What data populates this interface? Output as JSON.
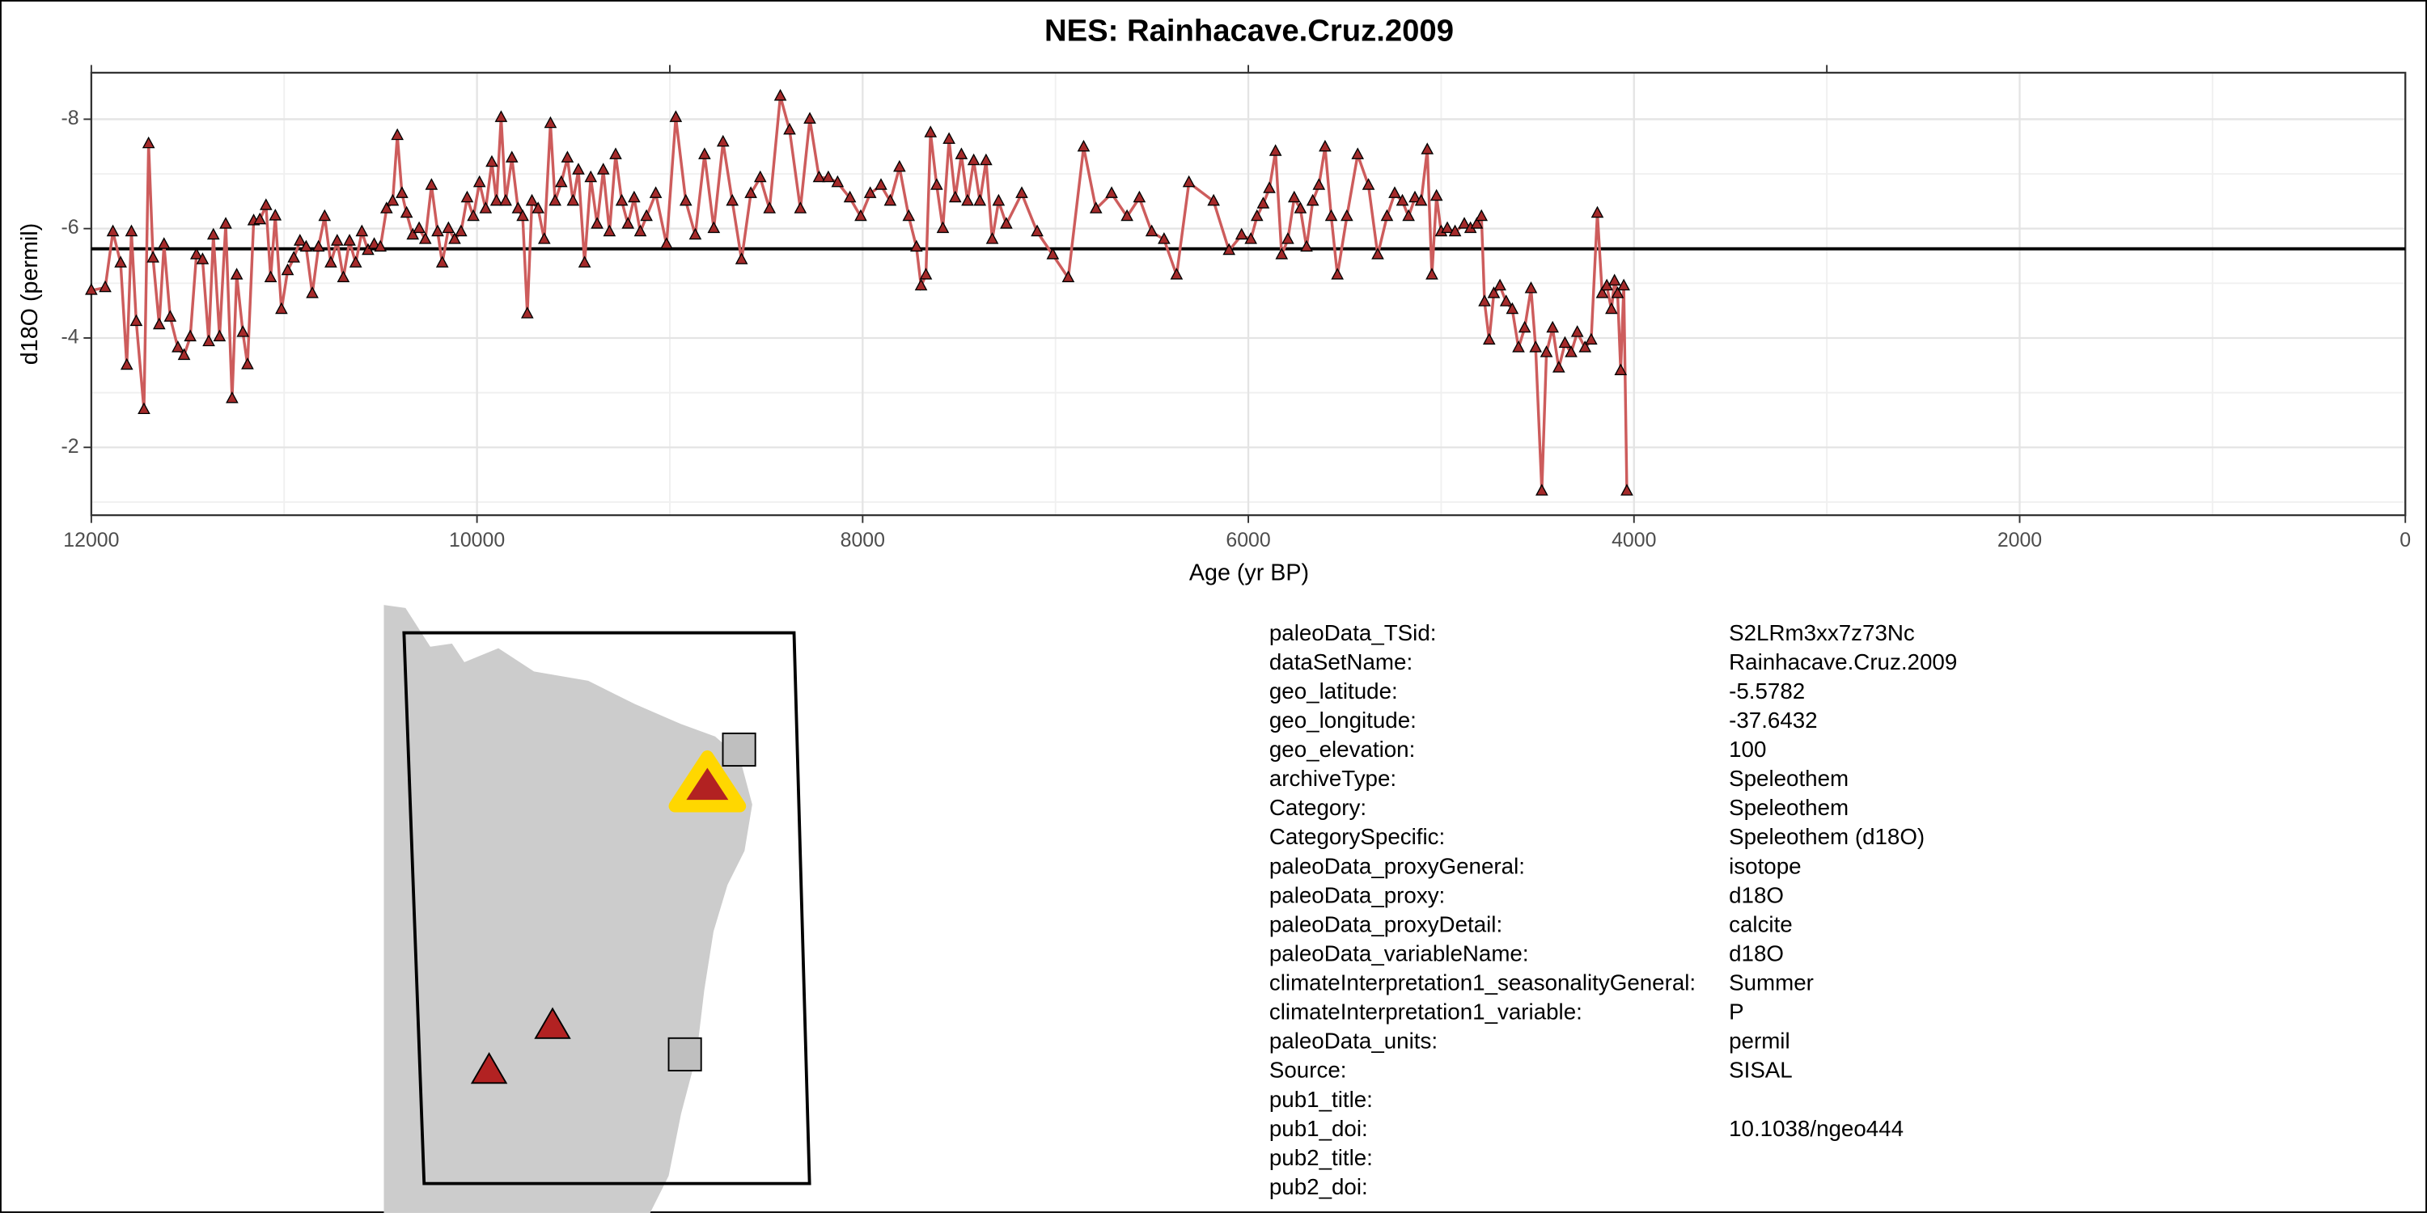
{
  "chart_data": {
    "type": "line",
    "title": "NES: Rainhacave.Cruz.2009",
    "x_label": "Age (yr BP)",
    "y_label": "d18O (permil)",
    "color": "#cd5c5c",
    "marker_color": "#a52a2a",
    "x": [
      12000,
      11928,
      11888,
      11848,
      11816,
      11792,
      11767,
      11727,
      11703,
      11680,
      11648,
      11623,
      11591,
      11551,
      11519,
      11487,
      11455,
      11423,
      11391,
      11367,
      11335,
      11303,
      11270,
      11246,
      11214,
      11190,
      11158,
      11126,
      11094,
      11070,
      11046,
      11014,
      10982,
      10950,
      10918,
      10886,
      10854,
      10822,
      10790,
      10758,
      10725,
      10693,
      10661,
      10629,
      10597,
      10565,
      10533,
      10501,
      10469,
      10437,
      10413,
      10389,
      10365,
      10333,
      10300,
      10268,
      10236,
      10204,
      10180,
      10148,
      10116,
      10083,
      10051,
      10019,
      9987,
      9955,
      9923,
      9899,
      9875,
      9851,
      9819,
      9787,
      9763,
      9739,
      9715,
      9683,
      9651,
      9619,
      9595,
      9563,
      9531,
      9502,
      9474,
      9442,
      9410,
      9377,
      9345,
      9313,
      9281,
      9249,
      9217,
      9185,
      9153,
      9121,
      9073,
      9017,
      8969,
      8917,
      8868,
      8820,
      8772,
      8724,
      8676,
      8628,
      8580,
      8531,
      8483,
      8427,
      8379,
      8323,
      8274,
      8226,
      8178,
      8130,
      8066,
      8010,
      7961,
      7905,
      7857,
      7809,
      7761,
      7721,
      7697,
      7672,
      7648,
      7616,
      7584,
      7552,
      7520,
      7488,
      7456,
      7424,
      7392,
      7360,
      7328,
      7295,
      7255,
      7175,
      7095,
      7014,
      6934,
      6854,
      6790,
      6709,
      6629,
      6565,
      6501,
      6437,
      6372,
      6308,
      6180,
      6100,
      6035,
      5987,
      5955,
      5923,
      5891,
      5859,
      5827,
      5795,
      5762,
      5730,
      5698,
      5666,
      5634,
      5602,
      5570,
      5538,
      5489,
      5433,
      5377,
      5329,
      5281,
      5241,
      5201,
      5169,
      5136,
      5104,
      5072,
      5048,
      5024,
      5000,
      4968,
      4928,
      4880,
      4848,
      4815,
      4791,
      4775,
      4751,
      4727,
      4695,
      4663,
      4631,
      4599,
      4567,
      4534,
      4510,
      4478,
      4454,
      4422,
      4390,
      4358,
      4326,
      4294,
      4254,
      4222,
      4190,
      4165,
      4141,
      4117,
      4101,
      4085,
      4069,
      4053,
      4037
    ],
    "values": [
      -4.87,
      -4.92,
      -5.94,
      -5.37,
      -3.5,
      -5.94,
      -4.3,
      -2.69,
      -7.55,
      -5.46,
      -4.24,
      -5.71,
      -4.38,
      -3.82,
      -3.68,
      -4.02,
      -5.52,
      -5.43,
      -3.93,
      -5.88,
      -4.02,
      -6.08,
      -2.89,
      -5.15,
      -4.1,
      -3.51,
      -6.14,
      -6.16,
      -6.42,
      -5.1,
      -6.23,
      -4.52,
      -5.23,
      -5.46,
      -5.77,
      -5.66,
      -4.81,
      -5.66,
      -6.22,
      -5.37,
      -5.77,
      -5.1,
      -5.77,
      -5.37,
      -5.94,
      -5.6,
      -5.71,
      -5.66,
      -6.36,
      -6.5,
      -7.7,
      -6.64,
      -6.28,
      -5.88,
      -6,
      -5.8,
      -6.79,
      -5.94,
      -5.37,
      -6,
      -5.8,
      -5.94,
      -6.56,
      -6.22,
      -6.84,
      -6.36,
      -7.21,
      -6.5,
      -8.03,
      -6.5,
      -7.29,
      -6.36,
      -6.22,
      -4.44,
      -6.5,
      -6.36,
      -5.8,
      -7.92,
      -6.5,
      -6.84,
      -7.29,
      -6.5,
      -7.07,
      -5.37,
      -6.93,
      -6.08,
      -7.07,
      -5.94,
      -7.35,
      -6.5,
      -6.08,
      -6.56,
      -5.94,
      -6.22,
      -6.64,
      -5.71,
      -8.03,
      -6.5,
      -5.88,
      -7.35,
      -6,
      -7.58,
      -6.5,
      -5.43,
      -6.64,
      -6.93,
      -6.36,
      -8.42,
      -7.8,
      -6.36,
      -8,
      -6.93,
      -6.93,
      -6.84,
      -6.56,
      -6.22,
      -6.64,
      -6.79,
      -6.5,
      -7.12,
      -6.22,
      -5.66,
      -4.95,
      -5.15,
      -7.75,
      -6.79,
      -6,
      -7.63,
      -6.56,
      -7.35,
      -6.5,
      -7.24,
      -6.5,
      -7.24,
      -5.8,
      -6.5,
      -6.08,
      -6.64,
      -5.94,
      -5.52,
      -5.1,
      -7.49,
      -6.36,
      -6.64,
      -6.22,
      -6.56,
      -5.94,
      -5.8,
      -5.15,
      -6.84,
      -6.5,
      -5.6,
      -5.88,
      -5.8,
      -6.22,
      -6.45,
      -6.73,
      -7.41,
      -5.52,
      -5.8,
      -6.56,
      -6.36,
      -5.66,
      -6.5,
      -6.79,
      -7.49,
      -6.22,
      -5.15,
      -6.22,
      -7.35,
      -6.79,
      -5.52,
      -6.22,
      -6.64,
      -6.5,
      -6.22,
      -6.56,
      -6.5,
      -7.44,
      -5.15,
      -6.59,
      -5.94,
      -6,
      -5.94,
      -6.08,
      -6,
      -6.08,
      -6.22,
      -4.66,
      -3.96,
      -4.81,
      -4.95,
      -4.66,
      -4.52,
      -3.82,
      -4.18,
      -4.9,
      -3.82,
      -1.2,
      -3.73,
      -4.18,
      -3.45,
      -3.9,
      -3.73,
      -4.1,
      -3.82,
      -3.96,
      -6.28,
      -4.81,
      -4.95,
      -4.52,
      -5.04,
      -4.81,
      -3.4,
      -4.95,
      -1.2
    ],
    "mean_line": -5.63,
    "xlim": [
      12000,
      0
    ],
    "xticks": [
      12000,
      10000,
      8000,
      6000,
      4000,
      2000,
      0
    ],
    "x_minor_ticks": [
      11000,
      9000,
      7000,
      5000,
      3000,
      1000
    ],
    "top_axis_ticks": [
      12000,
      9000,
      6000,
      3000
    ],
    "ylim": [
      -8.85,
      -0.76
    ],
    "yticks": [
      -8,
      -6,
      -4,
      -2
    ],
    "y_minor_ticks": [
      -7,
      -5,
      -3,
      -1
    ],
    "grid": true
  },
  "metadata": {
    "rows": [
      [
        "paleoData_TSid:",
        "S2LRm3xx7z73Nc"
      ],
      [
        "dataSetName:",
        "Rainhacave.Cruz.2009"
      ],
      [
        "geo_latitude:",
        "-5.5782"
      ],
      [
        "geo_longitude:",
        "-37.6432"
      ],
      [
        "geo_elevation:",
        "100"
      ],
      [
        "archiveType:",
        "Speleothem"
      ],
      [
        "Category:",
        "Speleothem"
      ],
      [
        "CategorySpecific:",
        "Speleothem (d18O)"
      ],
      [
        "paleoData_proxyGeneral:",
        "isotope"
      ],
      [
        "paleoData_proxy:",
        "d18O"
      ],
      [
        "paleoData_proxyDetail:",
        "calcite"
      ],
      [
        "paleoData_variableName:",
        "d18O"
      ],
      [
        "climateInterpretation1_seasonalityGeneral:",
        "Summer"
      ],
      [
        "climateInterpretation1_variable:",
        "P"
      ],
      [
        "paleoData_units:",
        "permil"
      ],
      [
        "Source:",
        "SISAL"
      ],
      [
        "pub1_title:"
      ],
      [
        "pub1_doi:",
        "10.1038/ngeo444"
      ],
      [
        "pub2_title:"
      ],
      [
        "pub2_doi:"
      ]
    ]
  }
}
